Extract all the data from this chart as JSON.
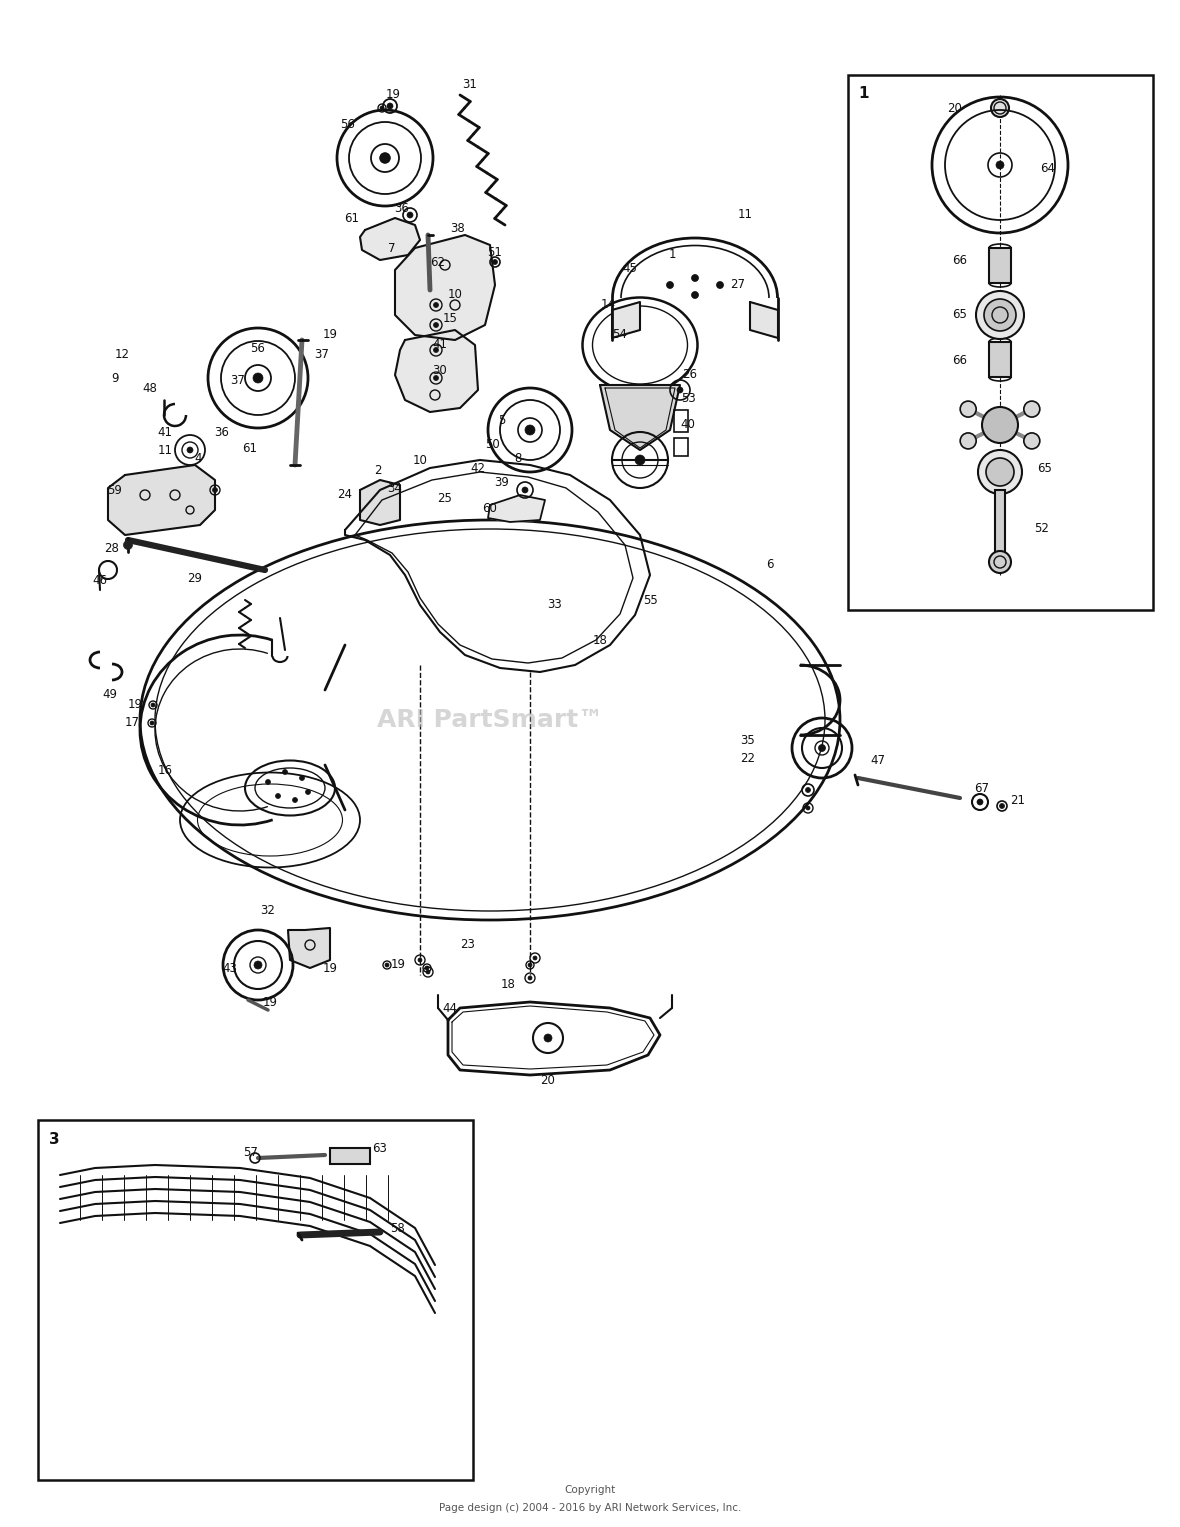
{
  "background_color": "#ffffff",
  "line_color": "#111111",
  "text_color": "#111111",
  "fig_width": 11.8,
  "fig_height": 15.27,
  "dpi": 100,
  "copyright_line1": "Copyright",
  "copyright_line2": "Page design (c) 2004 - 2016 by ARI Network Services, Inc.",
  "box1_label": "1",
  "box3_label": "3",
  "watermark": "ARI PartSmart™"
}
